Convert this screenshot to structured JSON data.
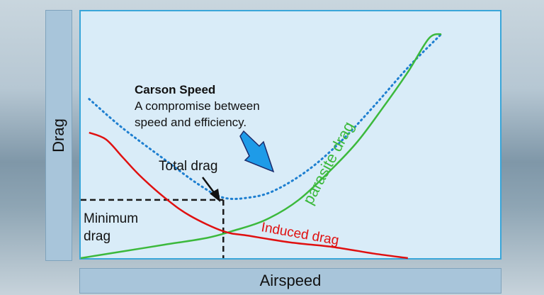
{
  "chart_data": {
    "type": "line",
    "title": "",
    "xlabel": "Airspeed",
    "ylabel": "Drag",
    "grid": false,
    "series": [
      {
        "name": "Total drag",
        "color": "#1e7fd0",
        "style": "dotted",
        "points": [
          [
            0.02,
            0.71
          ],
          [
            0.1,
            0.58
          ],
          [
            0.2,
            0.44
          ],
          [
            0.28,
            0.33
          ],
          [
            0.34,
            0.27
          ],
          [
            0.4,
            0.27
          ],
          [
            0.46,
            0.3
          ],
          [
            0.54,
            0.39
          ],
          [
            0.62,
            0.52
          ],
          [
            0.7,
            0.68
          ],
          [
            0.78,
            0.85
          ],
          [
            0.86,
            1.0
          ]
        ]
      },
      {
        "name": "parasite drag",
        "color": "#3cb93c",
        "style": "solid",
        "points": [
          [
            0.0,
            0.0
          ],
          [
            0.1,
            0.03
          ],
          [
            0.2,
            0.06
          ],
          [
            0.3,
            0.09
          ],
          [
            0.36,
            0.12
          ],
          [
            0.44,
            0.17
          ],
          [
            0.52,
            0.26
          ],
          [
            0.6,
            0.4
          ],
          [
            0.66,
            0.52
          ],
          [
            0.72,
            0.67
          ],
          [
            0.78,
            0.83
          ],
          [
            0.83,
            0.98
          ],
          [
            0.86,
            1.0
          ]
        ]
      },
      {
        "name": "Induced drag",
        "color": "#e01010",
        "style": "solid",
        "points": [
          [
            0.02,
            0.56
          ],
          [
            0.06,
            0.53
          ],
          [
            0.1,
            0.45
          ],
          [
            0.14,
            0.37
          ],
          [
            0.2,
            0.27
          ],
          [
            0.26,
            0.19
          ],
          [
            0.34,
            0.12
          ],
          [
            0.4,
            0.1
          ],
          [
            0.5,
            0.07
          ],
          [
            0.6,
            0.05
          ],
          [
            0.7,
            0.02
          ],
          [
            0.78,
            0.0
          ]
        ]
      }
    ],
    "minimum_point": {
      "x": 0.34,
      "y": 0.26
    },
    "annotations": {
      "carson_title": "Carson Speed",
      "carson_line1": "A compromise between",
      "carson_line2": "speed and efficiency.",
      "total_drag": "Total drag",
      "min_drag_line1": "Minimum",
      "min_drag_line2": "drag",
      "parasite_label": "parasite drag",
      "induced_label": "Induced drag"
    }
  },
  "colors": {
    "arrow_fill": "#1e9be8",
    "arrow_outline": "#1b2a6b",
    "dashed_line": "#1a1a1a"
  }
}
